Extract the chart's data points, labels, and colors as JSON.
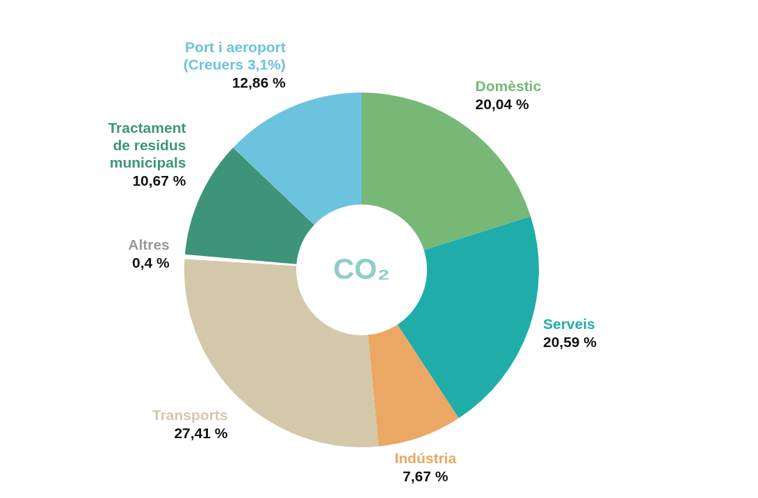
{
  "chart_data": {
    "type": "donut",
    "categories": [
      "Domèstic",
      "Serveis",
      "Indústria",
      "Transports",
      "Altres",
      "Tractament\nde residus\nmunicipals",
      "Port i aeroport\n(Creuers 3,1%)"
    ],
    "values": [
      20.04,
      20.59,
      7.67,
      27.41,
      0.4,
      10.67,
      12.86
    ],
    "colors": [
      "#77b877",
      "#20ada9",
      "#eaa864",
      "#d3c8a9",
      "#ffffff",
      "#3d9479",
      "#6cc3dd"
    ],
    "value_labels": [
      "20,04 %",
      "20,59 %",
      "7,67 %",
      "27,41 %",
      "0,4 %",
      "10,67 %",
      "12,86 %"
    ],
    "annotations": [
      "CO₂"
    ]
  }
}
